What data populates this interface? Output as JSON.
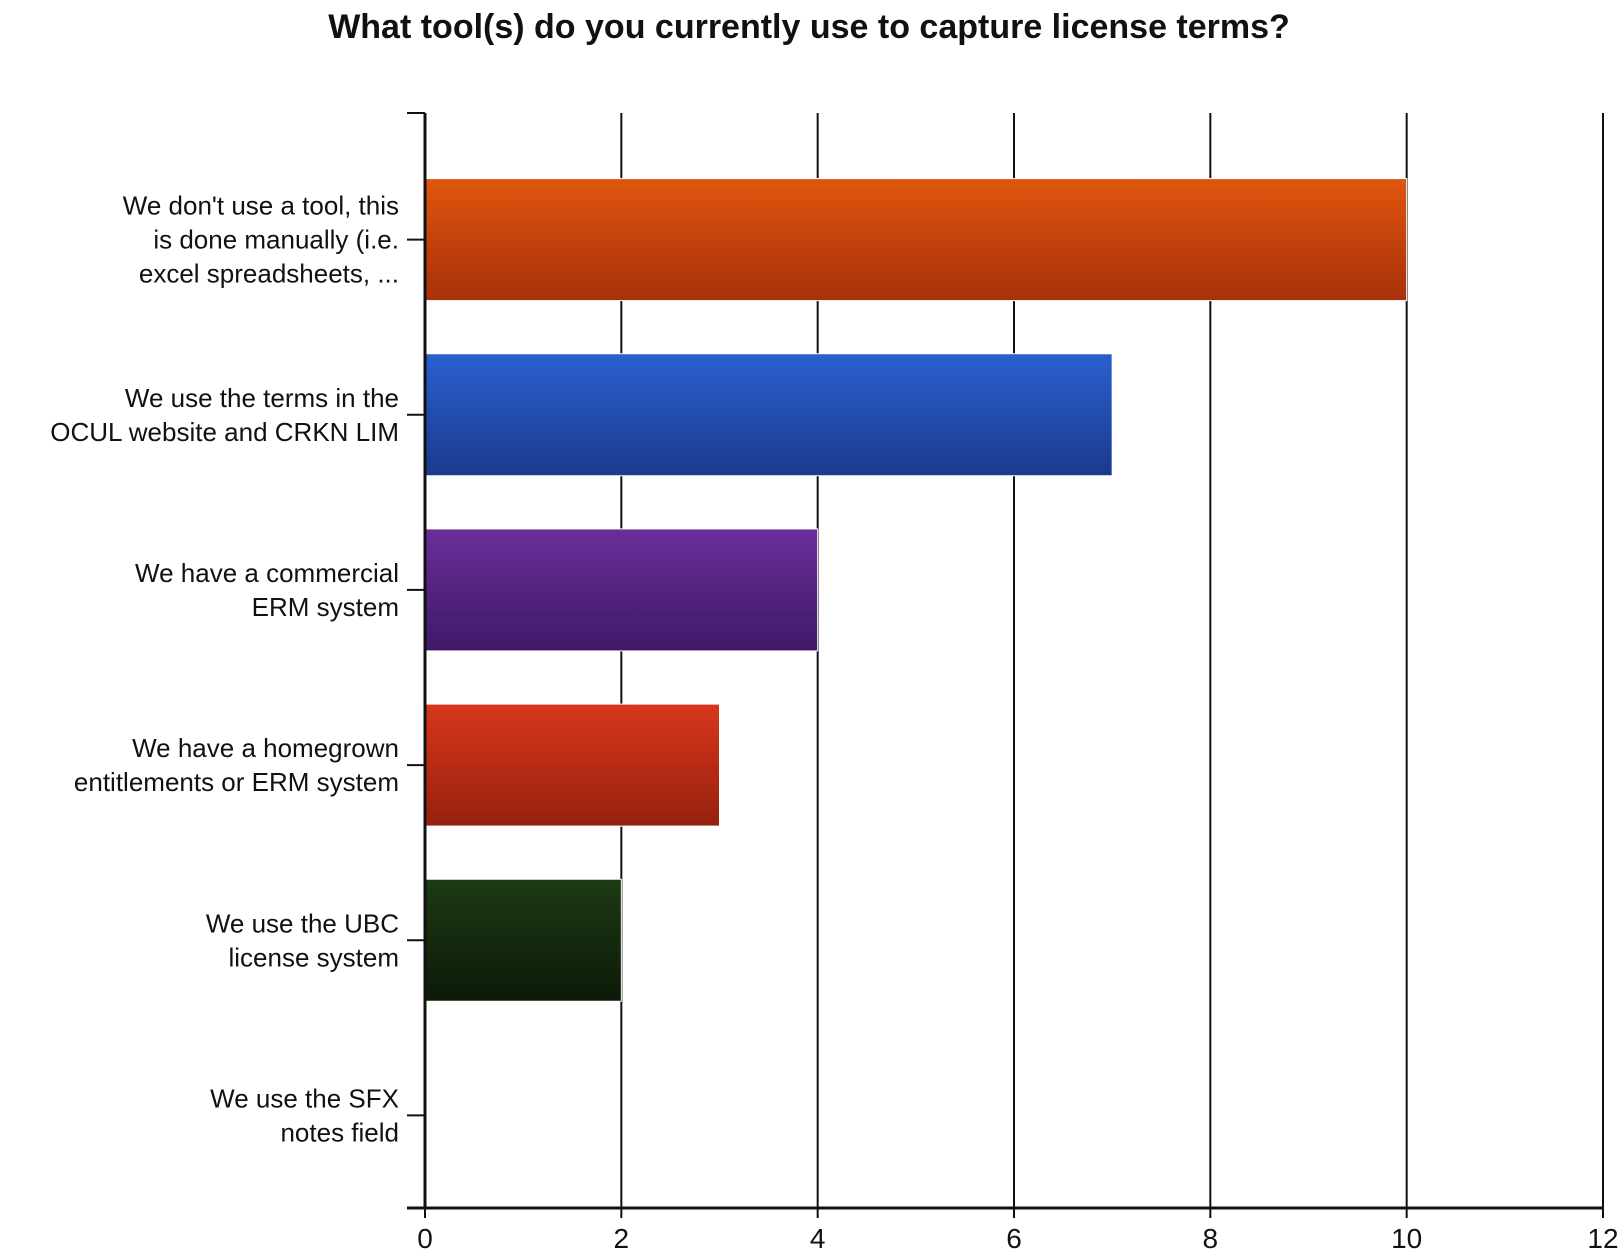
{
  "chart_data": {
    "type": "bar",
    "orientation": "horizontal",
    "title": "What tool(s) do you currently use to capture license terms?",
    "xlabel": "",
    "ylabel": "",
    "categories": [
      [
        "We don't use a tool, this",
        "is done manually (i.e.",
        "excel spreadsheets, ..."
      ],
      [
        "We use the terms in the",
        "OCUL website and CRKN LIM"
      ],
      [
        "We have a commercial",
        "ERM system"
      ],
      [
        "We have a homegrown",
        "entitlements or ERM system"
      ],
      [
        "We use the UBC",
        "license system"
      ],
      [
        "We use the SFX",
        "notes field"
      ]
    ],
    "values": [
      10,
      7,
      4,
      3,
      2,
      0
    ],
    "xlim": [
      0,
      12
    ],
    "xticks": [
      0,
      2,
      4,
      6,
      8,
      10,
      12
    ],
    "grid": "vertical",
    "legend": "none",
    "bar_colors": [
      [
        "#e0560e",
        "#a8300a"
      ],
      [
        "#2a5fcf",
        "#1a3a8c"
      ],
      [
        "#6a2f9a",
        "#3f1868"
      ],
      [
        "#d9361a",
        "#95200f"
      ],
      [
        "#1d3a14",
        "#0c1a08"
      ],
      [
        "#888888",
        "#555555"
      ]
    ]
  }
}
